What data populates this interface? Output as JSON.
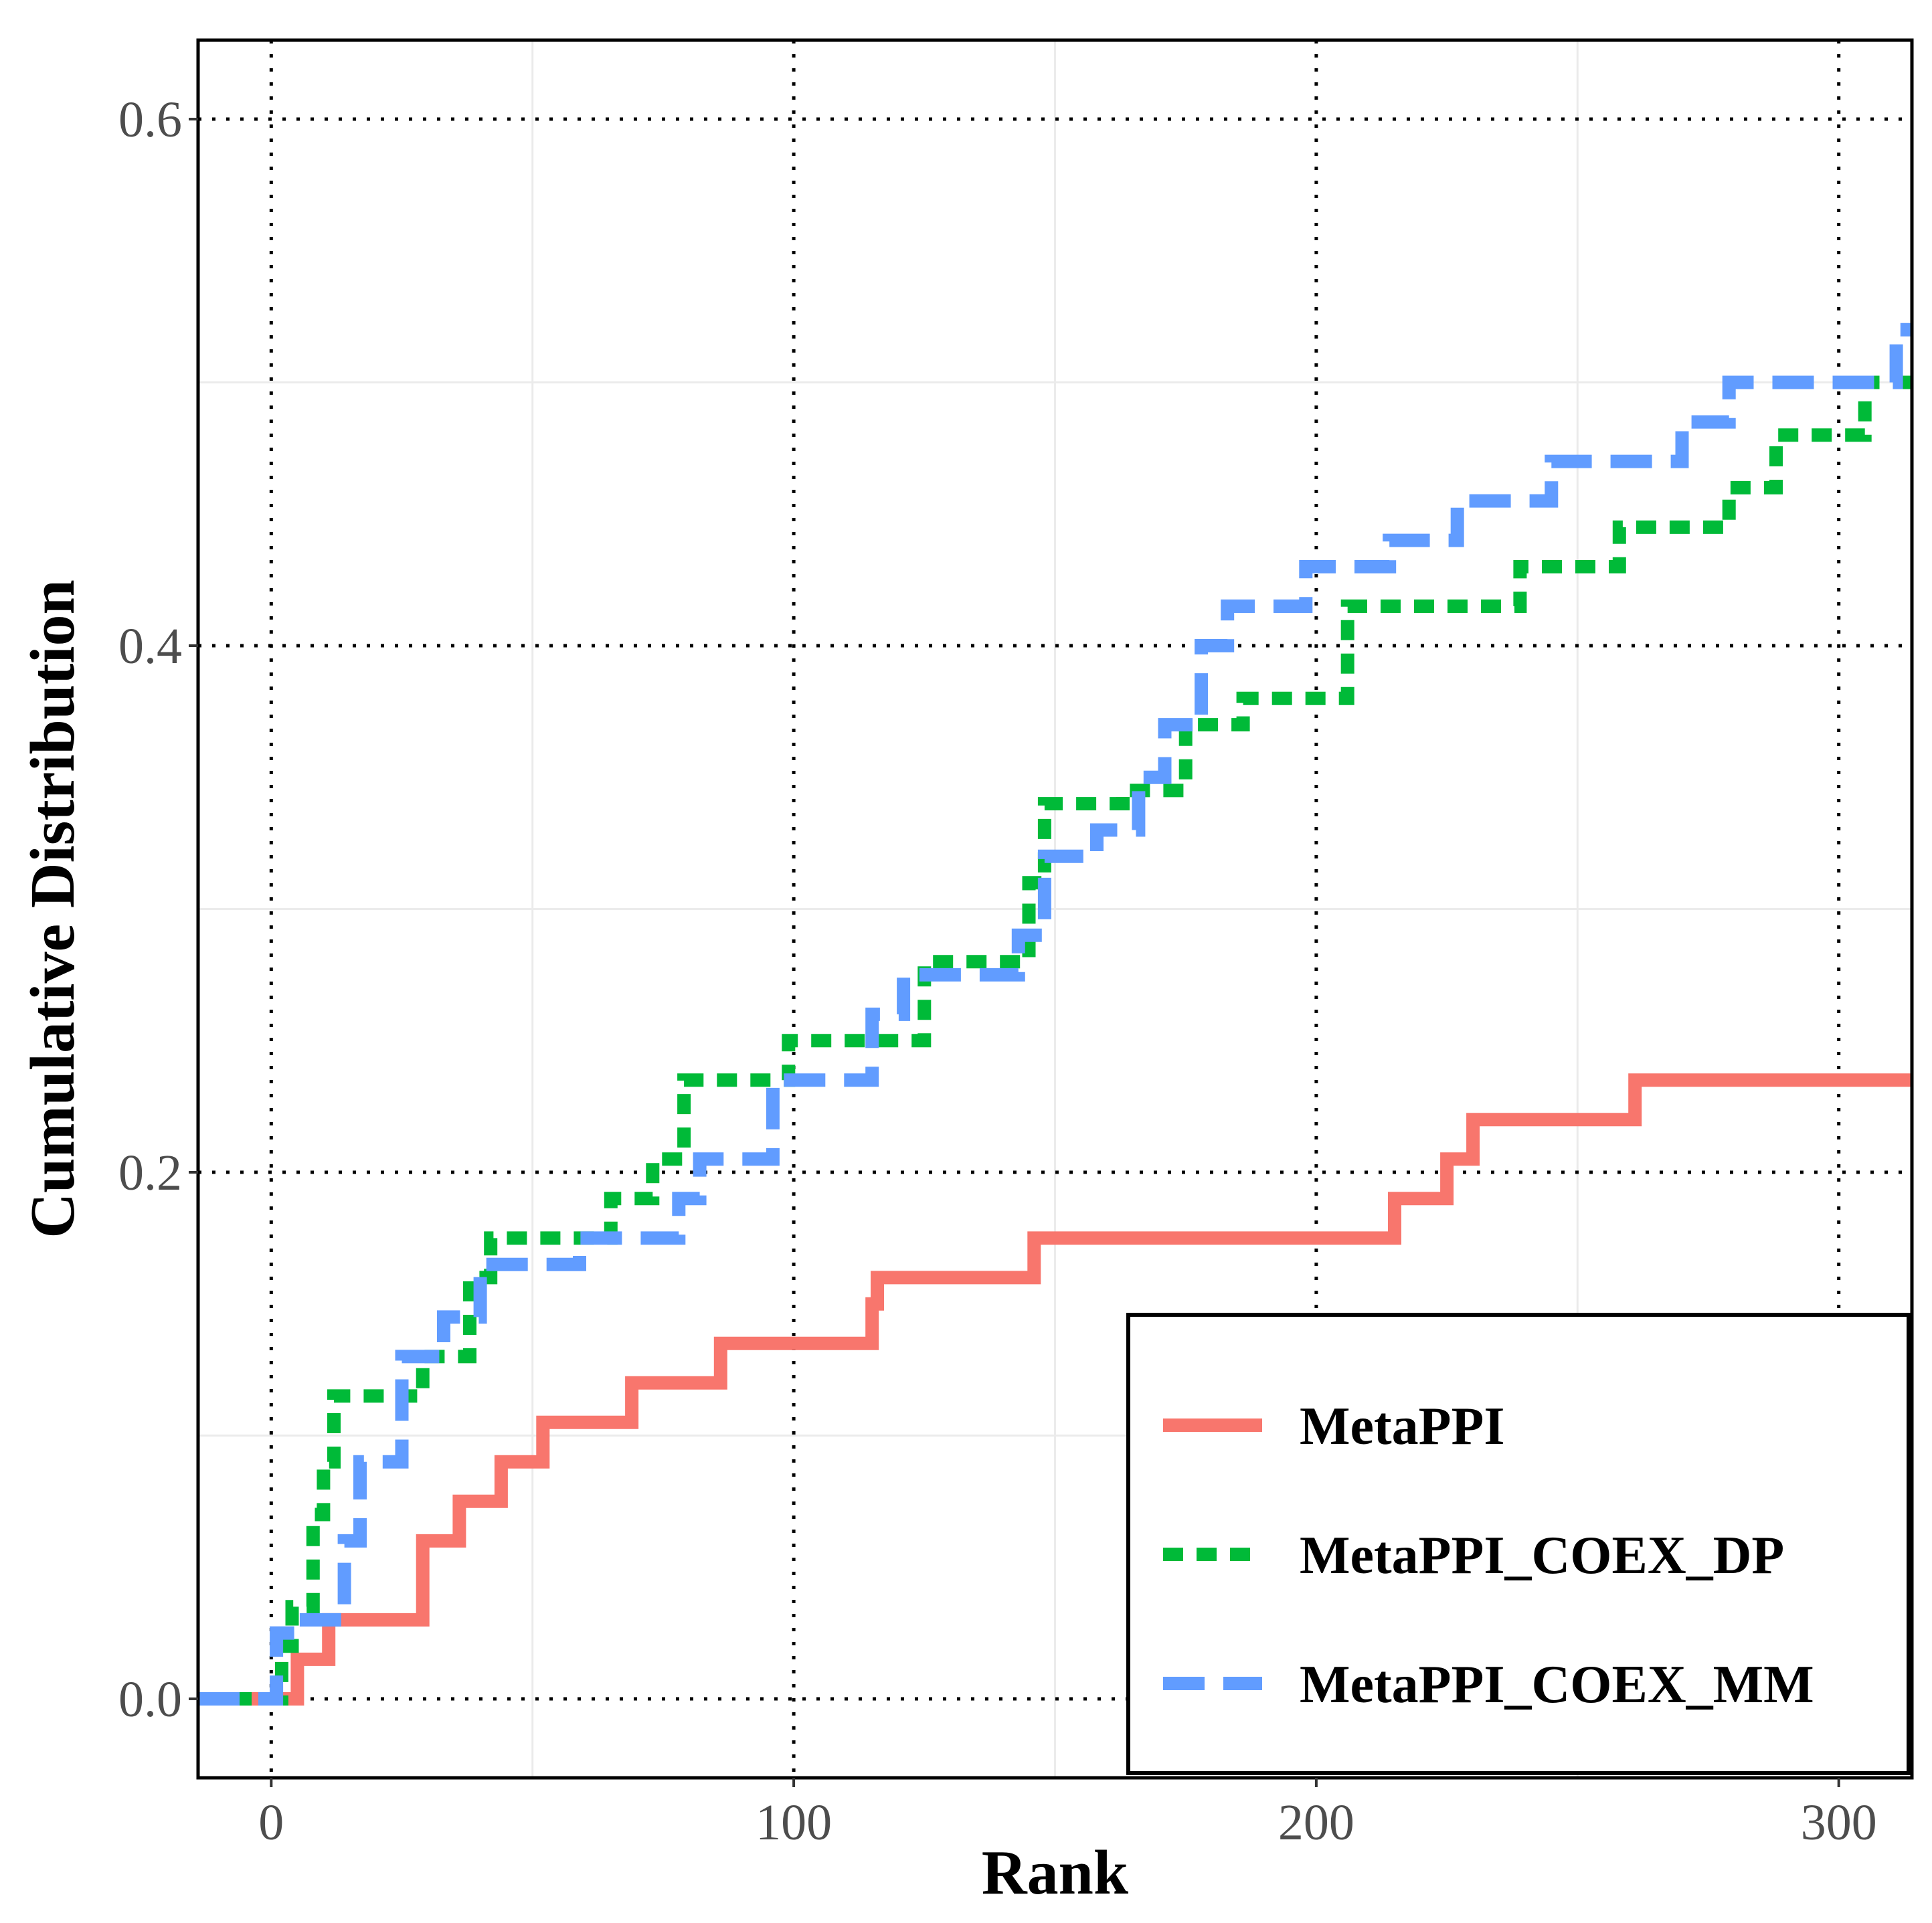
{
  "chart_data": {
    "type": "line",
    "step": true,
    "xlabel": "Rank",
    "ylabel": "Cumulative Distribution",
    "xlim": [
      -14,
      314
    ],
    "ylim": [
      -0.03,
      0.63
    ],
    "x_ticks": [
      0,
      100,
      200,
      300
    ],
    "y_ticks": [
      0.0,
      0.2,
      0.4,
      0.6
    ],
    "x_tick_labels": [
      "0",
      "100",
      "200",
      "300"
    ],
    "y_tick_labels": [
      "0.0",
      "0.2",
      "0.4",
      "0.6"
    ],
    "major_grid": "dotted black",
    "minor_grid": "light gray",
    "legend_position": "bottom-right",
    "series": [
      {
        "name": "MetaPPI",
        "color": "#F8766D",
        "linestyle": "solid",
        "x": [
          -14,
          5,
          11,
          29,
          36,
          44,
          52,
          69,
          86,
          115,
          116,
          146,
          215,
          225,
          230,
          261,
          314
        ],
        "y": [
          0.0,
          0.015,
          0.03,
          0.06,
          0.075,
          0.09,
          0.105,
          0.12,
          0.135,
          0.15,
          0.16,
          0.175,
          0.19,
          0.205,
          0.22,
          0.235,
          0.235
        ]
      },
      {
        "name": "MetaPPI_COEX_DP",
        "color": "#00BA38",
        "linestyle": "dashed",
        "x": [
          -14,
          2,
          4,
          8,
          10,
          12,
          29,
          38,
          42,
          65,
          73,
          79,
          90,
          99,
          116,
          125,
          145,
          148,
          163,
          175,
          186,
          206,
          210,
          239,
          258,
          279,
          288,
          305,
          314
        ],
        "y": [
          0.0,
          0.02,
          0.035,
          0.07,
          0.09,
          0.115,
          0.13,
          0.16,
          0.175,
          0.19,
          0.205,
          0.235,
          0.235,
          0.25,
          0.25,
          0.28,
          0.31,
          0.34,
          0.345,
          0.37,
          0.38,
          0.415,
          0.415,
          0.43,
          0.445,
          0.46,
          0.48,
          0.5,
          0.5
        ]
      },
      {
        "name": "MetaPPI_COEX_MM",
        "color": "#619CFF",
        "linestyle": "longdash",
        "x": [
          -14,
          1,
          5,
          14,
          17,
          25,
          33,
          40,
          59,
          78,
          82,
          96,
          115,
          121,
          143,
          148,
          158,
          166,
          171,
          178,
          183,
          198,
          214,
          227,
          245,
          270,
          279,
          299,
          311,
          314
        ],
        "y": [
          0.0,
          0.025,
          0.03,
          0.06,
          0.09,
          0.13,
          0.145,
          0.165,
          0.175,
          0.19,
          0.205,
          0.235,
          0.26,
          0.275,
          0.29,
          0.32,
          0.33,
          0.35,
          0.37,
          0.4,
          0.415,
          0.43,
          0.44,
          0.455,
          0.47,
          0.485,
          0.5,
          0.5,
          0.52,
          0.52
        ]
      }
    ]
  }
}
